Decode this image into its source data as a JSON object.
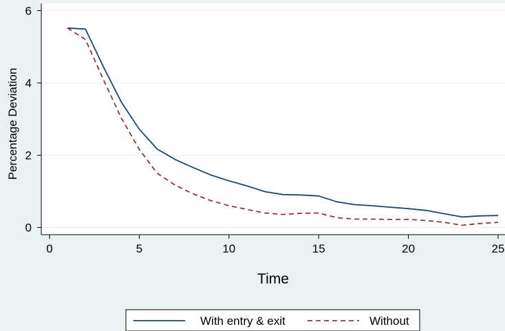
{
  "chart_data": {
    "type": "line",
    "title": "",
    "xlabel": "Time",
    "ylabel": "Percentage Deviation",
    "xlim": [
      0,
      25
    ],
    "ylim": [
      -0.2,
      6.2
    ],
    "xticks": [
      0,
      5,
      10,
      15,
      20,
      25
    ],
    "yticks": [
      0,
      2,
      4,
      6
    ],
    "grid": true,
    "legend_position": "bottom",
    "x": [
      1,
      2,
      3,
      4,
      5,
      6,
      7,
      8,
      9,
      10,
      11,
      12,
      13,
      14,
      15,
      16,
      17,
      18,
      19,
      20,
      21,
      22,
      23,
      24,
      25
    ],
    "series": [
      {
        "name": "With entry & exit",
        "color": "#1a476f",
        "style": "solid",
        "values": [
          5.52,
          5.49,
          4.45,
          3.47,
          2.72,
          2.17,
          1.88,
          1.66,
          1.45,
          1.29,
          1.15,
          0.99,
          0.91,
          0.9,
          0.87,
          0.71,
          0.63,
          0.6,
          0.56,
          0.52,
          0.47,
          0.38,
          0.29,
          0.32,
          0.33
        ]
      },
      {
        "name": "Without",
        "color": "#90353b",
        "style": "dashed",
        "values": [
          5.52,
          5.2,
          4.1,
          3.03,
          2.16,
          1.5,
          1.17,
          0.93,
          0.74,
          0.6,
          0.5,
          0.4,
          0.36,
          0.39,
          0.4,
          0.27,
          0.23,
          0.23,
          0.22,
          0.22,
          0.19,
          0.14,
          0.06,
          0.11,
          0.14
        ]
      }
    ]
  }
}
